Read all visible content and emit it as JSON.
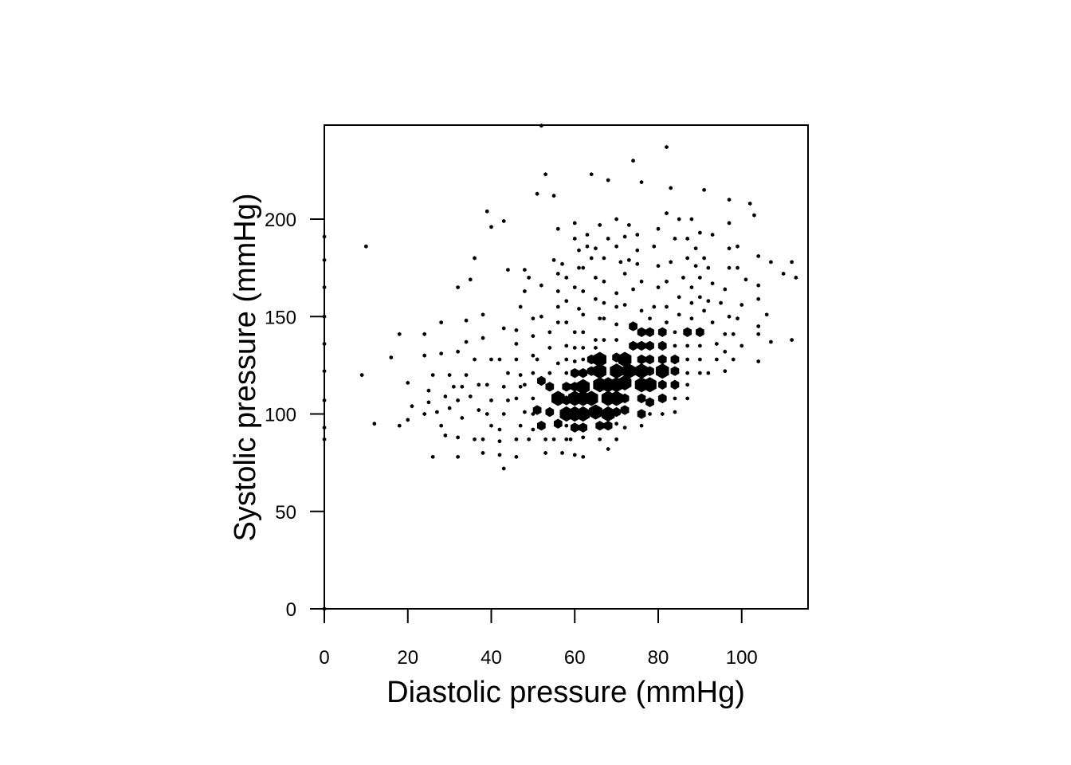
{
  "chart_data": {
    "type": "hexbin",
    "title": "",
    "xlabel": "Diastolic pressure (mmHg)",
    "ylabel": "Systolic pressure (mmHg)",
    "xlim": [
      0,
      116
    ],
    "ylim": [
      0,
      248
    ],
    "xticks": [
      {
        "value": 0,
        "label": "0"
      },
      {
        "value": 20,
        "label": "20"
      },
      {
        "value": 40,
        "label": "40"
      },
      {
        "value": 60,
        "label": "60"
      },
      {
        "value": 80,
        "label": "80"
      },
      {
        "value": 100,
        "label": "100"
      }
    ],
    "yticks": [
      {
        "value": 0,
        "label": "0"
      },
      {
        "value": 50,
        "label": "50"
      },
      {
        "value": 100,
        "label": "100"
      },
      {
        "value": 150,
        "label": "150"
      },
      {
        "value": 200,
        "label": "200"
      }
    ],
    "grid": false,
    "legend": "none",
    "color": "#000000",
    "bins": [
      [
        0,
        191,
        1
      ],
      [
        0,
        179,
        1
      ],
      [
        0,
        165,
        1
      ],
      [
        0,
        150,
        1
      ],
      [
        0,
        136,
        1
      ],
      [
        0,
        122,
        1
      ],
      [
        0,
        107,
        1
      ],
      [
        0,
        93,
        1
      ],
      [
        0,
        87,
        1
      ],
      [
        0,
        0,
        1
      ],
      [
        10,
        186,
        1
      ],
      [
        9,
        120,
        1
      ],
      [
        12,
        95,
        1
      ],
      [
        18,
        141,
        1
      ],
      [
        16,
        129,
        1
      ],
      [
        20,
        116,
        1
      ],
      [
        21,
        104,
        1
      ],
      [
        20,
        97,
        1
      ],
      [
        18,
        94,
        1
      ],
      [
        24,
        141,
        1
      ],
      [
        24,
        130,
        1
      ],
      [
        26,
        120,
        1
      ],
      [
        25,
        112,
        1
      ],
      [
        25,
        106,
        1
      ],
      [
        24,
        100,
        1
      ],
      [
        27,
        101,
        1
      ],
      [
        26,
        78,
        1
      ],
      [
        28,
        147,
        1
      ],
      [
        28,
        131,
        1
      ],
      [
        30,
        120,
        1
      ],
      [
        31,
        114,
        1
      ],
      [
        29,
        109,
        1
      ],
      [
        30,
        103,
        1
      ],
      [
        28,
        94,
        1
      ],
      [
        29,
        89,
        1
      ],
      [
        32,
        165,
        1
      ],
      [
        32,
        132,
        1
      ],
      [
        34,
        120,
        1
      ],
      [
        33,
        114,
        1
      ],
      [
        32,
        107,
        1
      ],
      [
        33,
        98,
        1
      ],
      [
        32,
        88,
        1
      ],
      [
        32,
        78,
        1
      ],
      [
        35,
        169,
        1
      ],
      [
        36,
        180,
        1
      ],
      [
        34,
        148,
        1
      ],
      [
        34,
        137,
        1
      ],
      [
        36,
        128,
        1
      ],
      [
        37,
        115,
        1
      ],
      [
        35,
        109,
        1
      ],
      [
        37,
        102,
        1
      ],
      [
        36,
        87,
        1
      ],
      [
        39,
        204,
        1
      ],
      [
        40,
        196,
        1
      ],
      [
        38,
        151,
        1
      ],
      [
        38,
        139,
        1
      ],
      [
        40,
        128,
        1
      ],
      [
        39,
        115,
        1
      ],
      [
        40,
        107,
        1
      ],
      [
        39,
        100,
        1
      ],
      [
        40,
        94,
        1
      ],
      [
        38,
        87,
        1
      ],
      [
        38,
        80,
        1
      ],
      [
        43,
        199,
        1
      ],
      [
        44,
        174,
        1
      ],
      [
        43,
        144,
        1
      ],
      [
        42,
        128,
        1
      ],
      [
        44,
        121,
        1
      ],
      [
        43,
        114,
        1
      ],
      [
        44,
        107,
        1
      ],
      [
        43,
        100,
        1
      ],
      [
        42,
        92,
        1
      ],
      [
        42,
        86,
        1
      ],
      [
        42,
        79,
        1
      ],
      [
        43,
        72,
        1
      ],
      [
        47,
        155,
        1
      ],
      [
        46,
        143,
        1
      ],
      [
        46,
        136,
        1
      ],
      [
        46,
        128,
        1
      ],
      [
        47,
        120,
        1
      ],
      [
        47,
        114,
        1
      ],
      [
        46,
        108,
        1
      ],
      [
        48,
        101,
        1
      ],
      [
        47,
        94,
        1
      ],
      [
        46,
        87,
        1
      ],
      [
        46,
        78,
        1
      ],
      [
        48,
        174,
        1
      ],
      [
        49,
        170,
        1
      ],
      [
        48,
        163,
        1
      ],
      [
        50,
        149,
        1
      ],
      [
        50,
        140,
        1
      ],
      [
        50,
        130,
        1
      ],
      [
        50,
        121,
        1
      ],
      [
        48,
        115,
        1
      ],
      [
        50,
        108,
        1
      ],
      [
        50,
        100,
        1
      ],
      [
        50,
        92,
        1
      ],
      [
        49,
        87,
        1
      ],
      [
        51,
        213,
        1
      ],
      [
        52,
        248,
        1
      ],
      [
        53,
        223,
        1
      ],
      [
        55,
        212,
        1
      ],
      [
        52,
        166,
        1
      ],
      [
        52,
        150,
        1
      ],
      [
        51,
        128,
        1
      ],
      [
        52,
        117,
        2
      ],
      [
        51,
        102,
        2
      ],
      [
        52,
        94,
        2
      ],
      [
        53,
        87,
        1
      ],
      [
        53,
        80,
        1
      ],
      [
        56,
        195,
        1
      ],
      [
        55,
        179,
        1
      ],
      [
        56,
        172,
        1
      ],
      [
        56,
        163,
        1
      ],
      [
        56,
        155,
        1
      ],
      [
        56,
        147,
        1
      ],
      [
        54,
        142,
        1
      ],
      [
        54,
        134,
        1
      ],
      [
        56,
        126,
        1
      ],
      [
        54,
        121,
        1
      ],
      [
        54,
        114,
        2
      ],
      [
        56,
        108,
        3
      ],
      [
        54,
        101,
        2
      ],
      [
        56,
        95,
        2
      ],
      [
        55,
        87,
        1
      ],
      [
        57,
        177,
        1
      ],
      [
        58,
        170,
        1
      ],
      [
        58,
        158,
        1
      ],
      [
        58,
        147,
        1
      ],
      [
        58,
        135,
        1
      ],
      [
        58,
        128,
        1
      ],
      [
        58,
        121,
        1
      ],
      [
        58,
        114,
        2
      ],
      [
        58,
        107,
        2
      ],
      [
        58,
        100,
        3
      ],
      [
        58,
        94,
        1
      ],
      [
        58,
        87,
        1
      ],
      [
        57,
        80,
        1
      ],
      [
        60,
        198,
        1
      ],
      [
        60,
        190,
        1
      ],
      [
        61,
        184,
        1
      ],
      [
        61,
        175,
        1
      ],
      [
        60,
        165,
        1
      ],
      [
        61,
        154,
        1
      ],
      [
        60,
        142,
        1
      ],
      [
        60,
        134,
        1
      ],
      [
        60,
        127,
        1
      ],
      [
        60,
        121,
        2
      ],
      [
        60,
        114,
        2
      ],
      [
        60,
        108,
        3
      ],
      [
        60,
        100,
        3
      ],
      [
        60,
        93,
        2
      ],
      [
        59,
        87,
        1
      ],
      [
        60,
        79,
        1
      ],
      [
        64,
        223,
        1
      ],
      [
        63,
        192,
        1
      ],
      [
        63,
        186,
        1
      ],
      [
        62,
        175,
        1
      ],
      [
        62,
        163,
        1
      ],
      [
        62,
        151,
        1
      ],
      [
        62,
        142,
        1
      ],
      [
        62,
        134,
        1
      ],
      [
        62,
        128,
        1
      ],
      [
        62,
        121,
        2
      ],
      [
        62,
        114,
        3
      ],
      [
        62,
        108,
        3
      ],
      [
        62,
        100,
        3
      ],
      [
        62,
        93,
        2
      ],
      [
        62,
        88,
        1
      ],
      [
        62,
        78,
        1
      ],
      [
        66,
        197,
        1
      ],
      [
        65,
        185,
        1
      ],
      [
        64,
        180,
        1
      ],
      [
        65,
        170,
        1
      ],
      [
        65,
        159,
        1
      ],
      [
        66,
        149,
        1
      ],
      [
        65,
        138,
        1
      ],
      [
        65,
        134,
        1
      ],
      [
        64,
        128,
        2
      ],
      [
        64,
        122,
        2
      ],
      [
        66,
        115,
        3
      ],
      [
        64,
        108,
        3
      ],
      [
        65,
        101,
        3
      ],
      [
        66,
        94,
        2
      ],
      [
        66,
        87,
        1
      ],
      [
        68,
        220,
        1
      ],
      [
        68,
        190,
        1
      ],
      [
        67,
        180,
        1
      ],
      [
        67,
        168,
        1
      ],
      [
        67,
        157,
        1
      ],
      [
        67,
        149,
        1
      ],
      [
        67,
        138,
        1
      ],
      [
        66,
        128,
        3
      ],
      [
        66,
        122,
        3
      ],
      [
        68,
        115,
        3
      ],
      [
        68,
        108,
        3
      ],
      [
        68,
        100,
        3
      ],
      [
        68,
        94,
        2
      ],
      [
        68,
        82,
        1
      ],
      [
        70,
        200,
        1
      ],
      [
        70,
        186,
        1
      ],
      [
        71,
        178,
        1
      ],
      [
        70,
        162,
        1
      ],
      [
        70,
        155,
        1
      ],
      [
        70,
        146,
        1
      ],
      [
        70,
        138,
        1
      ],
      [
        70,
        129,
        2
      ],
      [
        70,
        122,
        3
      ],
      [
        70,
        115,
        3
      ],
      [
        70,
        108,
        3
      ],
      [
        70,
        101,
        2
      ],
      [
        70,
        95,
        1
      ],
      [
        70,
        87,
        1
      ],
      [
        74,
        230,
        1
      ],
      [
        73,
        197,
        1
      ],
      [
        72,
        191,
        1
      ],
      [
        73,
        179,
        1
      ],
      [
        72,
        172,
        1
      ],
      [
        74,
        164,
        1
      ],
      [
        72,
        156,
        1
      ],
      [
        74,
        145,
        2
      ],
      [
        74,
        135,
        2
      ],
      [
        72,
        128,
        3
      ],
      [
        73,
        122,
        3
      ],
      [
        72,
        116,
        3
      ],
      [
        72,
        108,
        2
      ],
      [
        72,
        102,
        2
      ],
      [
        72,
        93,
        1
      ],
      [
        76,
        219,
        1
      ],
      [
        75,
        192,
        1
      ],
      [
        75,
        184,
        1
      ],
      [
        75,
        177,
        1
      ],
      [
        76,
        168,
        1
      ],
      [
        76,
        153,
        1
      ],
      [
        76,
        142,
        2
      ],
      [
        76,
        135,
        2
      ],
      [
        76,
        128,
        2
      ],
      [
        76,
        122,
        3
      ],
      [
        76,
        115,
        3
      ],
      [
        76,
        108,
        2
      ],
      [
        76,
        100,
        2
      ],
      [
        76,
        94,
        1
      ],
      [
        82,
        237,
        1
      ],
      [
        83,
        216,
        1
      ],
      [
        82,
        203,
        1
      ],
      [
        80,
        195,
        1
      ],
      [
        79,
        186,
        1
      ],
      [
        80,
        176,
        1
      ],
      [
        80,
        165,
        1
      ],
      [
        79,
        155,
        1
      ],
      [
        78,
        149,
        1
      ],
      [
        78,
        142,
        2
      ],
      [
        78,
        135,
        2
      ],
      [
        78,
        128,
        2
      ],
      [
        78,
        122,
        2
      ],
      [
        78,
        115,
        3
      ],
      [
        78,
        106,
        2
      ],
      [
        78,
        100,
        1
      ],
      [
        85,
        200,
        1
      ],
      [
        84,
        190,
        1
      ],
      [
        83,
        178,
        1
      ],
      [
        82,
        168,
        1
      ],
      [
        82,
        155,
        1
      ],
      [
        82,
        147,
        1
      ],
      [
        81,
        142,
        2
      ],
      [
        81,
        135,
        2
      ],
      [
        81,
        128,
        2
      ],
      [
        81,
        122,
        3
      ],
      [
        81,
        115,
        2
      ],
      [
        81,
        108,
        2
      ],
      [
        81,
        100,
        1
      ],
      [
        88,
        200,
        1
      ],
      [
        87,
        190,
        1
      ],
      [
        87,
        180,
        1
      ],
      [
        86,
        170,
        1
      ],
      [
        85,
        160,
        1
      ],
      [
        85,
        151,
        1
      ],
      [
        84,
        142,
        1
      ],
      [
        84,
        135,
        1
      ],
      [
        84,
        128,
        2
      ],
      [
        84,
        122,
        2
      ],
      [
        84,
        115,
        2
      ],
      [
        84,
        108,
        1
      ],
      [
        84,
        101,
        1
      ],
      [
        91,
        215,
        1
      ],
      [
        89,
        185,
        1
      ],
      [
        89,
        176,
        1
      ],
      [
        88,
        165,
        1
      ],
      [
        88,
        157,
        1
      ],
      [
        88,
        149,
        1
      ],
      [
        87,
        142,
        2
      ],
      [
        87,
        135,
        1
      ],
      [
        87,
        128,
        1
      ],
      [
        87,
        121,
        1
      ],
      [
        87,
        115,
        1
      ],
      [
        87,
        108,
        1
      ],
      [
        90,
        193,
        1
      ],
      [
        91,
        180,
        1
      ],
      [
        90,
        170,
        1
      ],
      [
        90,
        160,
        1
      ],
      [
        91,
        153,
        1
      ],
      [
        90,
        142,
        2
      ],
      [
        90,
        135,
        1
      ],
      [
        90,
        128,
        1
      ],
      [
        90,
        121,
        1
      ],
      [
        93,
        192,
        1
      ],
      [
        92,
        175,
        1
      ],
      [
        93,
        167,
        1
      ],
      [
        92,
        158,
        1
      ],
      [
        93,
        147,
        1
      ],
      [
        94,
        136,
        1
      ],
      [
        94,
        128,
        1
      ],
      [
        92,
        121,
        1
      ],
      [
        97,
        210,
        1
      ],
      [
        97,
        198,
        1
      ],
      [
        97,
        185,
        1
      ],
      [
        97,
        175,
        1
      ],
      [
        96,
        164,
        1
      ],
      [
        95,
        157,
        1
      ],
      [
        97,
        150,
        1
      ],
      [
        96,
        141,
        1
      ],
      [
        96,
        132,
        1
      ],
      [
        96,
        122,
        1
      ],
      [
        102,
        208,
        1
      ],
      [
        99,
        186,
        1
      ],
      [
        99,
        175,
        1
      ],
      [
        101,
        169,
        1
      ],
      [
        100,
        156,
        1
      ],
      [
        99,
        149,
        1
      ],
      [
        98,
        141,
        1
      ],
      [
        98,
        128,
        1
      ],
      [
        103,
        202,
        1
      ],
      [
        104,
        181,
        1
      ],
      [
        104,
        166,
        1
      ],
      [
        104,
        159,
        1
      ],
      [
        106,
        151,
        1
      ],
      [
        104,
        145,
        1
      ],
      [
        104,
        141,
        1
      ],
      [
        100,
        135,
        1
      ],
      [
        104,
        127,
        1
      ],
      [
        107,
        178,
        1
      ],
      [
        107,
        137,
        1
      ],
      [
        110,
        172,
        1
      ],
      [
        112,
        178,
        1
      ],
      [
        113,
        170,
        1
      ],
      [
        112,
        138,
        1
      ]
    ]
  }
}
